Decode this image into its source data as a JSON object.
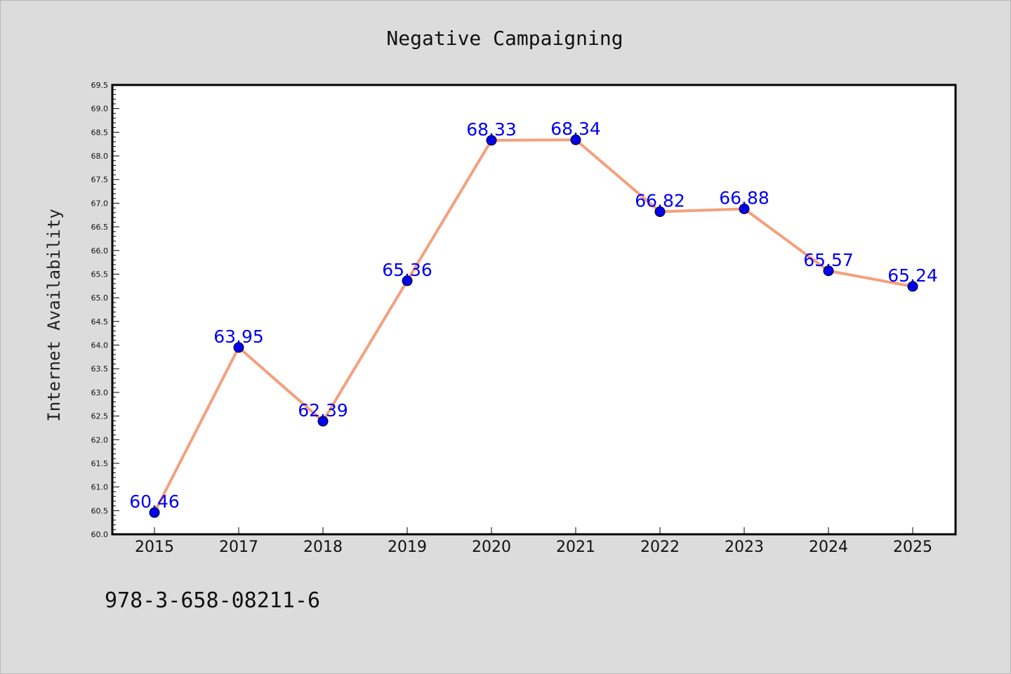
{
  "chart_data": {
    "type": "line",
    "title": "Negative Campaigning",
    "xlabel": "",
    "ylabel": "Internet Availability",
    "categories": [
      "2015",
      "2017",
      "2018",
      "2019",
      "2020",
      "2021",
      "2022",
      "2023",
      "2024",
      "2025"
    ],
    "series": [
      {
        "values": [
          60.46,
          63.95,
          62.39,
          65.36,
          68.33,
          68.34,
          66.82,
          66.88,
          65.57,
          65.24
        ],
        "data_labels": [
          "60.46",
          "63.95",
          "62.39",
          "65.36",
          "68.33",
          "68.34",
          "66.82",
          "66.88",
          "65.57",
          "65.24"
        ],
        "line_color": "#f4a07c",
        "marker_color": "#0000ee",
        "label_color": "#0000ee"
      }
    ],
    "ylim": [
      60.0,
      69.5
    ],
    "yticks": [
      "60.0",
      "60.5",
      "61.0",
      "61.5",
      "62.0",
      "62.5",
      "63.0",
      "63.5",
      "64.0",
      "64.5",
      "65.0",
      "65.5",
      "66.0",
      "66.5",
      "67.0",
      "67.5",
      "68.0",
      "68.5",
      "69.0",
      "69.5"
    ],
    "grid": false,
    "legend": "none"
  },
  "footer": {
    "text": "978-3-658-08211-6"
  },
  "colors": {
    "background": "#dcdcdc",
    "plot_background": "#ffffff",
    "axis": "#000000"
  }
}
